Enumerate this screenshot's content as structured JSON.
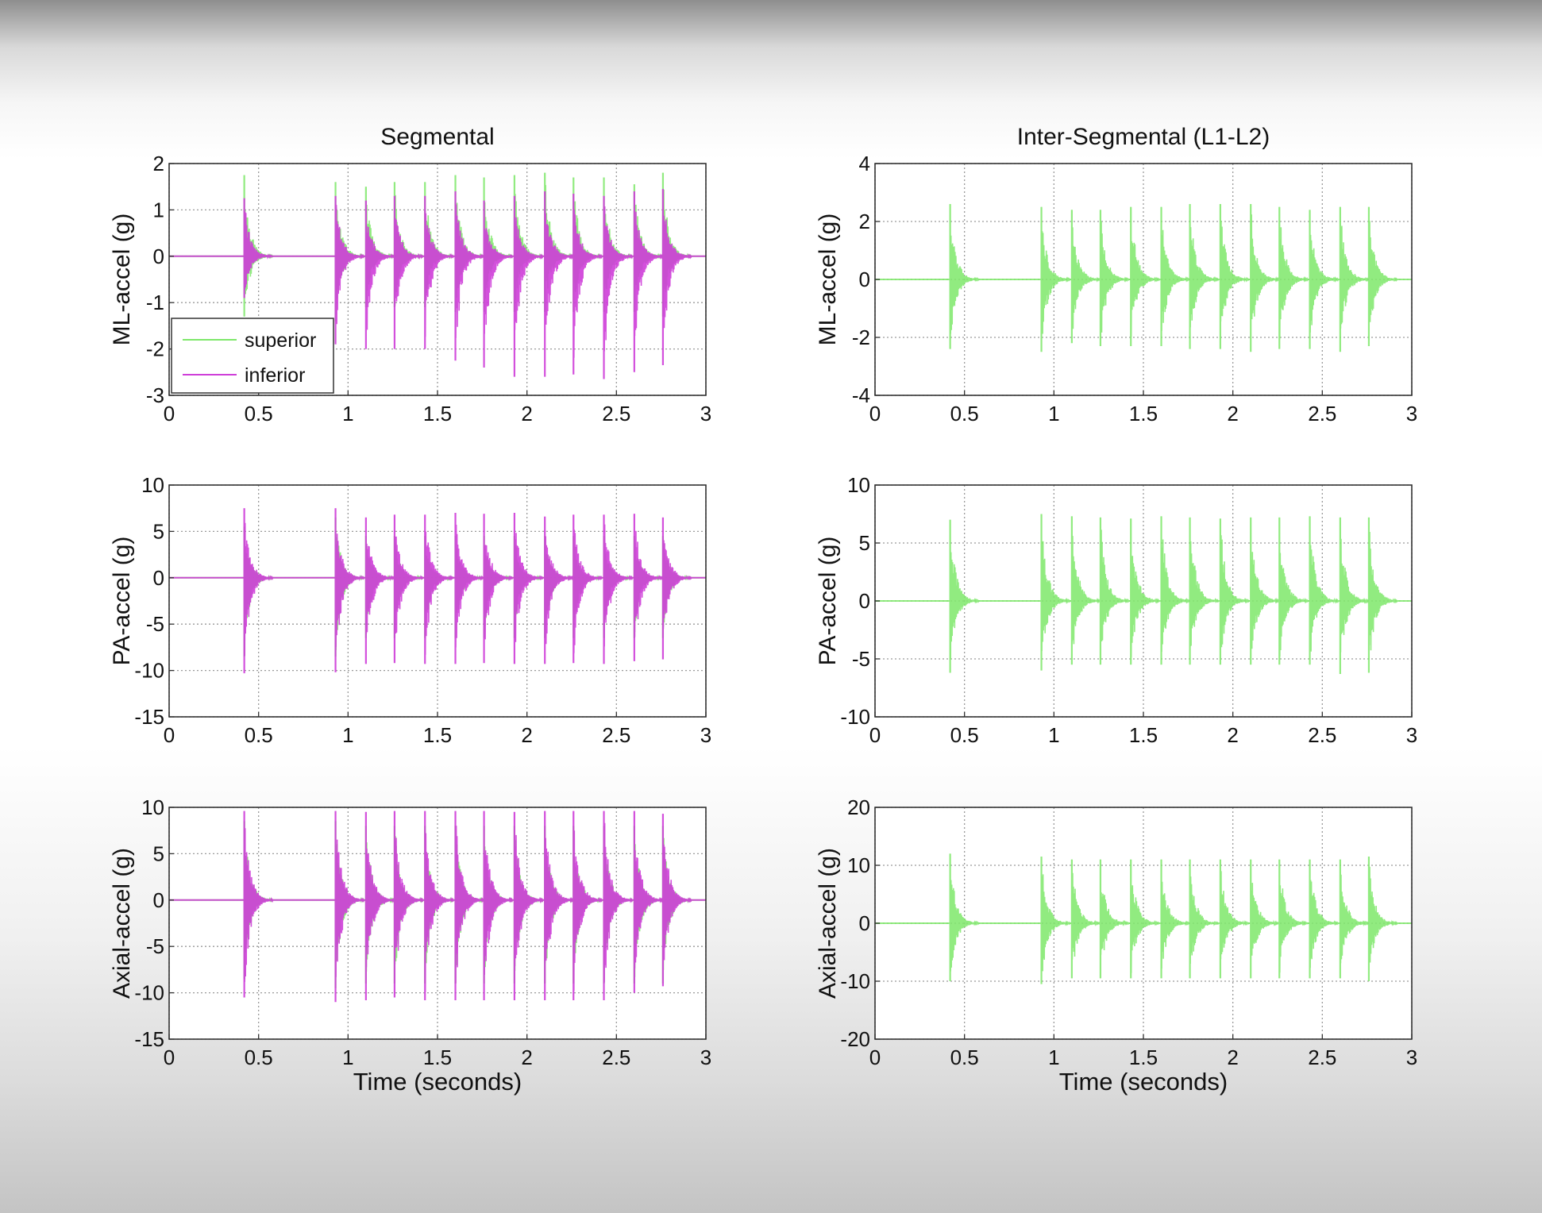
{
  "chart_data": [
    {
      "type": "line",
      "title": "Segmental",
      "xlabel": "",
      "ylabel": "ML-accel (g)",
      "xlim": [
        0,
        3
      ],
      "ylim": [
        -3,
        2
      ],
      "xticks": [
        "0",
        "0.5",
        "1",
        "1.5",
        "2",
        "2.5",
        "3"
      ],
      "yticks": [
        "2",
        "1",
        "0",
        "-1",
        "-2",
        "-3"
      ],
      "grid": true,
      "legend": {
        "placement": "bottom-left",
        "entries": [
          "superior",
          "inferior"
        ]
      },
      "series": [
        {
          "name": "superior",
          "color": "#7ee86a",
          "bursts": [
            {
              "t": 0.42,
              "pos": 1.75,
              "neg": -1.3
            },
            {
              "t": 0.93,
              "pos": 1.6,
              "neg": -1.4
            },
            {
              "t": 1.1,
              "pos": 1.5,
              "neg": -1.1
            },
            {
              "t": 1.26,
              "pos": 1.6,
              "neg": -1.1
            },
            {
              "t": 1.43,
              "pos": 1.6,
              "neg": -1.1
            },
            {
              "t": 1.6,
              "pos": 1.75,
              "neg": -1.2
            },
            {
              "t": 1.76,
              "pos": 1.7,
              "neg": -1.2
            },
            {
              "t": 1.93,
              "pos": 1.75,
              "neg": -1.2
            },
            {
              "t": 2.1,
              "pos": 1.8,
              "neg": -1.2
            },
            {
              "t": 2.26,
              "pos": 1.7,
              "neg": -1.2
            },
            {
              "t": 2.43,
              "pos": 1.7,
              "neg": -1.2
            },
            {
              "t": 2.6,
              "pos": 1.55,
              "neg": -1.2
            },
            {
              "t": 2.76,
              "pos": 1.8,
              "neg": -1.3
            }
          ]
        },
        {
          "name": "inferior",
          "color": "#cf3ed9",
          "bursts": [
            {
              "t": 0.42,
              "pos": 1.25,
              "neg": -0.9
            },
            {
              "t": 0.93,
              "pos": 1.3,
              "neg": -1.9
            },
            {
              "t": 1.1,
              "pos": 1.2,
              "neg": -2.0
            },
            {
              "t": 1.26,
              "pos": 1.3,
              "neg": -2.0
            },
            {
              "t": 1.43,
              "pos": 1.3,
              "neg": -2.0
            },
            {
              "t": 1.6,
              "pos": 1.4,
              "neg": -2.25
            },
            {
              "t": 1.76,
              "pos": 1.2,
              "neg": -2.4
            },
            {
              "t": 1.93,
              "pos": 1.3,
              "neg": -2.6
            },
            {
              "t": 2.1,
              "pos": 1.4,
              "neg": -2.6
            },
            {
              "t": 2.26,
              "pos": 1.35,
              "neg": -2.55
            },
            {
              "t": 2.43,
              "pos": 1.3,
              "neg": -2.65
            },
            {
              "t": 2.6,
              "pos": 1.4,
              "neg": -2.5
            },
            {
              "t": 2.76,
              "pos": 1.45,
              "neg": -2.35
            }
          ]
        }
      ]
    },
    {
      "type": "line",
      "title": "Inter-Segmental (L1-L2)",
      "xlabel": "",
      "ylabel": "ML-accel (g)",
      "xlim": [
        0,
        3
      ],
      "ylim": [
        -4,
        4
      ],
      "xticks": [
        "0",
        "0.5",
        "1",
        "1.5",
        "2",
        "2.5",
        "3"
      ],
      "yticks": [
        "4",
        "2",
        "0",
        "-2",
        "-4"
      ],
      "grid": true,
      "series": [
        {
          "color": "#7ee86a",
          "bursts": [
            {
              "t": 0.42,
              "pos": 2.6,
              "neg": -2.4
            },
            {
              "t": 0.93,
              "pos": 2.5,
              "neg": -2.5
            },
            {
              "t": 1.1,
              "pos": 2.4,
              "neg": -2.2
            },
            {
              "t": 1.26,
              "pos": 2.4,
              "neg": -2.3
            },
            {
              "t": 1.43,
              "pos": 2.5,
              "neg": -2.3
            },
            {
              "t": 1.6,
              "pos": 2.5,
              "neg": -2.3
            },
            {
              "t": 1.76,
              "pos": 2.6,
              "neg": -2.4
            },
            {
              "t": 1.93,
              "pos": 2.6,
              "neg": -2.4
            },
            {
              "t": 2.1,
              "pos": 2.6,
              "neg": -2.5
            },
            {
              "t": 2.26,
              "pos": 2.5,
              "neg": -2.4
            },
            {
              "t": 2.43,
              "pos": 2.4,
              "neg": -2.4
            },
            {
              "t": 2.6,
              "pos": 2.5,
              "neg": -2.5
            },
            {
              "t": 2.76,
              "pos": 2.5,
              "neg": -2.3
            }
          ]
        }
      ]
    },
    {
      "type": "line",
      "title": "",
      "xlabel": "",
      "ylabel": "PA-accel (g)",
      "xlim": [
        0,
        3
      ],
      "ylim": [
        -15,
        10
      ],
      "xticks": [
        "0",
        "0.5",
        "1",
        "1.5",
        "2",
        "2.5",
        "3"
      ],
      "yticks": [
        "10",
        "5",
        "0",
        "-5",
        "-10",
        "-15"
      ],
      "grid": true,
      "series": [
        {
          "name": "superior",
          "color": "#7ee86a",
          "bursts": [
            {
              "t": 0.42,
              "pos": 5.5,
              "neg": -8.5
            },
            {
              "t": 0.93,
              "pos": 6.5,
              "neg": -8.5
            },
            {
              "t": 1.1,
              "pos": 4.5,
              "neg": -6.5
            },
            {
              "t": 1.26,
              "pos": 4.5,
              "neg": -6.5
            },
            {
              "t": 1.43,
              "pos": 4.5,
              "neg": -6.5
            },
            {
              "t": 1.6,
              "pos": 4.5,
              "neg": -6.5
            },
            {
              "t": 1.76,
              "pos": 4.5,
              "neg": -6.5
            },
            {
              "t": 1.93,
              "pos": 4.5,
              "neg": -6.5
            },
            {
              "t": 2.1,
              "pos": 4.5,
              "neg": -6.5
            },
            {
              "t": 2.26,
              "pos": 4.5,
              "neg": -6.5
            },
            {
              "t": 2.43,
              "pos": 4.5,
              "neg": -6.5
            },
            {
              "t": 2.6,
              "pos": 4.5,
              "neg": -6.5
            },
            {
              "t": 2.76,
              "pos": 4.5,
              "neg": -6.5
            }
          ]
        },
        {
          "name": "inferior",
          "color": "#cf3ed9",
          "bursts": [
            {
              "t": 0.42,
              "pos": 7.5,
              "neg": -10.3
            },
            {
              "t": 0.93,
              "pos": 7.5,
              "neg": -10.2
            },
            {
              "t": 1.1,
              "pos": 6.5,
              "neg": -9.3
            },
            {
              "t": 1.26,
              "pos": 6.8,
              "neg": -9.2
            },
            {
              "t": 1.43,
              "pos": 6.8,
              "neg": -9.3
            },
            {
              "t": 1.6,
              "pos": 7.0,
              "neg": -9.3
            },
            {
              "t": 1.76,
              "pos": 6.9,
              "neg": -9.2
            },
            {
              "t": 1.93,
              "pos": 7.0,
              "neg": -9.3
            },
            {
              "t": 2.1,
              "pos": 6.6,
              "neg": -9.3
            },
            {
              "t": 2.26,
              "pos": 6.8,
              "neg": -9.2
            },
            {
              "t": 2.43,
              "pos": 6.8,
              "neg": -9.3
            },
            {
              "t": 2.6,
              "pos": 6.9,
              "neg": -9.0
            },
            {
              "t": 2.76,
              "pos": 6.5,
              "neg": -8.8
            }
          ]
        }
      ]
    },
    {
      "type": "line",
      "title": "",
      "xlabel": "",
      "ylabel": "PA-accel (g)",
      "xlim": [
        0,
        3
      ],
      "ylim": [
        -10,
        10
      ],
      "xticks": [
        "0",
        "0.5",
        "1",
        "1.5",
        "2",
        "2.5",
        "3"
      ],
      "yticks": [
        "10",
        "5",
        "0",
        "-5",
        "-10"
      ],
      "grid": true,
      "series": [
        {
          "color": "#7ee86a",
          "bursts": [
            {
              "t": 0.42,
              "pos": 7.0,
              "neg": -6.2
            },
            {
              "t": 0.93,
              "pos": 7.5,
              "neg": -6.0
            },
            {
              "t": 1.1,
              "pos": 7.3,
              "neg": -5.5
            },
            {
              "t": 1.26,
              "pos": 7.2,
              "neg": -5.5
            },
            {
              "t": 1.43,
              "pos": 7.1,
              "neg": -5.5
            },
            {
              "t": 1.6,
              "pos": 7.3,
              "neg": -5.5
            },
            {
              "t": 1.76,
              "pos": 7.2,
              "neg": -5.5
            },
            {
              "t": 1.93,
              "pos": 7.1,
              "neg": -5.5
            },
            {
              "t": 2.1,
              "pos": 7.2,
              "neg": -5.5
            },
            {
              "t": 2.26,
              "pos": 7.2,
              "neg": -5.5
            },
            {
              "t": 2.43,
              "pos": 7.3,
              "neg": -5.5
            },
            {
              "t": 2.6,
              "pos": 7.2,
              "neg": -6.3
            },
            {
              "t": 2.76,
              "pos": 7.2,
              "neg": -6.2
            }
          ]
        }
      ]
    },
    {
      "type": "line",
      "title": "",
      "xlabel": "Time (seconds)",
      "ylabel": "Axial-accel (g)",
      "xlim": [
        0,
        3
      ],
      "ylim": [
        -15,
        10
      ],
      "xticks": [
        "0",
        "0.5",
        "1",
        "1.5",
        "2",
        "2.5",
        "3"
      ],
      "yticks": [
        "10",
        "5",
        "0",
        "-5",
        "-10",
        "-15"
      ],
      "grid": true,
      "series": [
        {
          "name": "superior",
          "color": "#7ee86a",
          "bursts": [
            {
              "t": 0.42,
              "pos": 8.5,
              "neg": -8.5
            },
            {
              "t": 0.93,
              "pos": 8.5,
              "neg": -9.5
            },
            {
              "t": 1.1,
              "pos": 8.0,
              "neg": -9.0
            },
            {
              "t": 1.26,
              "pos": 8.0,
              "neg": -9.0
            },
            {
              "t": 1.43,
              "pos": 8.0,
              "neg": -9.0
            },
            {
              "t": 1.6,
              "pos": 8.0,
              "neg": -9.0
            },
            {
              "t": 1.76,
              "pos": 8.0,
              "neg": -9.0
            },
            {
              "t": 1.93,
              "pos": 8.0,
              "neg": -9.0
            },
            {
              "t": 2.1,
              "pos": 8.0,
              "neg": -9.0
            },
            {
              "t": 2.26,
              "pos": 8.0,
              "neg": -9.0
            },
            {
              "t": 2.43,
              "pos": 8.0,
              "neg": -9.0
            },
            {
              "t": 2.6,
              "pos": 8.0,
              "neg": -9.0
            },
            {
              "t": 2.76,
              "pos": 8.0,
              "neg": -9.0
            }
          ]
        },
        {
          "name": "inferior",
          "color": "#cf3ed9",
          "bursts": [
            {
              "t": 0.42,
              "pos": 9.6,
              "neg": -10.5
            },
            {
              "t": 0.93,
              "pos": 9.6,
              "neg": -11.0
            },
            {
              "t": 1.1,
              "pos": 9.5,
              "neg": -10.8
            },
            {
              "t": 1.26,
              "pos": 9.6,
              "neg": -10.5
            },
            {
              "t": 1.43,
              "pos": 9.6,
              "neg": -10.8
            },
            {
              "t": 1.6,
              "pos": 9.6,
              "neg": -10.8
            },
            {
              "t": 1.76,
              "pos": 9.6,
              "neg": -10.8
            },
            {
              "t": 1.93,
              "pos": 9.5,
              "neg": -10.8
            },
            {
              "t": 2.1,
              "pos": 9.6,
              "neg": -10.8
            },
            {
              "t": 2.26,
              "pos": 9.6,
              "neg": -10.8
            },
            {
              "t": 2.43,
              "pos": 9.6,
              "neg": -10.8
            },
            {
              "t": 2.6,
              "pos": 9.6,
              "neg": -10.0
            },
            {
              "t": 2.76,
              "pos": 9.3,
              "neg": -9.3
            }
          ]
        }
      ]
    },
    {
      "type": "line",
      "title": "",
      "xlabel": "Time (seconds)",
      "ylabel": "Axial-accel (g)",
      "xlim": [
        0,
        3
      ],
      "ylim": [
        -20,
        20
      ],
      "xticks": [
        "0",
        "0.5",
        "1",
        "1.5",
        "2",
        "2.5",
        "3"
      ],
      "yticks": [
        "20",
        "10",
        "0",
        "-10",
        "-20"
      ],
      "grid": true,
      "series": [
        {
          "color": "#7ee86a",
          "bursts": [
            {
              "t": 0.42,
              "pos": 12.0,
              "neg": -10.0
            },
            {
              "t": 0.93,
              "pos": 11.5,
              "neg": -10.5
            },
            {
              "t": 1.1,
              "pos": 11.0,
              "neg": -9.5
            },
            {
              "t": 1.26,
              "pos": 11.0,
              "neg": -9.5
            },
            {
              "t": 1.43,
              "pos": 11.0,
              "neg": -9.5
            },
            {
              "t": 1.6,
              "pos": 11.0,
              "neg": -9.5
            },
            {
              "t": 1.76,
              "pos": 11.0,
              "neg": -9.5
            },
            {
              "t": 1.93,
              "pos": 11.0,
              "neg": -9.5
            },
            {
              "t": 2.1,
              "pos": 11.0,
              "neg": -9.5
            },
            {
              "t": 2.26,
              "pos": 11.0,
              "neg": -9.5
            },
            {
              "t": 2.43,
              "pos": 11.0,
              "neg": -9.5
            },
            {
              "t": 2.6,
              "pos": 11.0,
              "neg": -9.5
            },
            {
              "t": 2.76,
              "pos": 11.5,
              "neg": -10.0
            }
          ]
        }
      ]
    }
  ]
}
